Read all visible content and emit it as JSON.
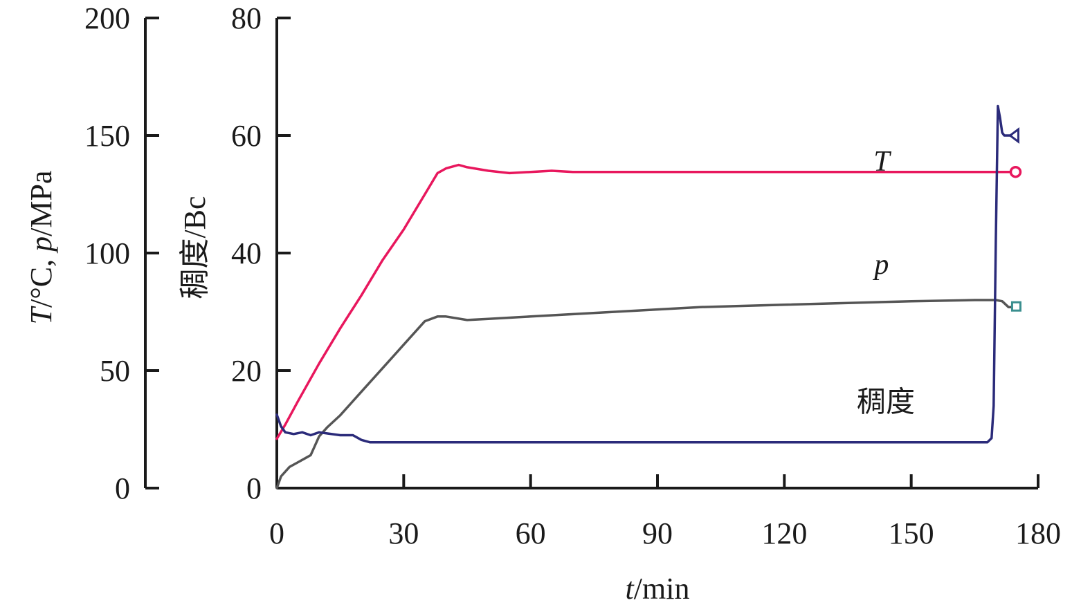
{
  "chart_data": {
    "type": "line",
    "x_label_var": "t",
    "x_label_unit": "/min",
    "y_left_label": {
      "var1": "T",
      "unit1": "/°C, ",
      "var2": "p",
      "unit2": "/MPa"
    },
    "y_mid_label": "稠度/Bc",
    "x_ticks": [
      0,
      30,
      60,
      90,
      120,
      150,
      180
    ],
    "xlim": [
      0,
      180
    ],
    "y_left_ticks": [
      0,
      50,
      100,
      150,
      200
    ],
    "y_left_lim": [
      0,
      200
    ],
    "y_right_ticks": [
      0,
      20,
      40,
      60,
      80
    ],
    "y_right_lim": [
      0,
      80
    ],
    "series": [
      {
        "name": "T",
        "axis": "left",
        "color": "#e8175d",
        "marker": "circle",
        "x": [
          0,
          2,
          5,
          10,
          15,
          20,
          25,
          30,
          35,
          38,
          40,
          42,
          43,
          45,
          50,
          55,
          60,
          65,
          70,
          100,
          135,
          150,
          170,
          175
        ],
        "y": [
          21,
          27,
          37,
          53,
          68,
          82,
          97,
          110,
          125,
          134,
          136,
          137,
          137.5,
          136.5,
          135,
          134,
          134.5,
          135,
          134.5,
          134.5,
          134.5,
          134.5,
          134.5,
          134.5
        ]
      },
      {
        "name": "p",
        "axis": "left",
        "color": "#555555",
        "marker": "square",
        "x": [
          0,
          1,
          3,
          5,
          7,
          8,
          9,
          10,
          12,
          15,
          20,
          25,
          30,
          35,
          38,
          40,
          45,
          50,
          60,
          80,
          100,
          120,
          150,
          165,
          170,
          171.5,
          173,
          175
        ],
        "y": [
          0,
          5,
          9,
          11,
          13,
          14,
          18,
          22,
          26,
          31,
          41,
          51,
          61,
          71,
          73,
          73,
          71.5,
          72,
          73,
          75,
          77,
          78,
          79.5,
          80,
          80,
          79.5,
          77,
          77
        ]
      },
      {
        "name": "稠度",
        "axis": "right",
        "color": "#2b2b7a",
        "marker": "triangle",
        "x": [
          0,
          1,
          2,
          4,
          6,
          8,
          10,
          12,
          15,
          18,
          20,
          22,
          30,
          40,
          60,
          100,
          150,
          168,
          169,
          169.5,
          170,
          170.5,
          171,
          171.5,
          172,
          173,
          175
        ],
        "y": [
          12.5,
          10.5,
          9.5,
          9.2,
          9.5,
          9.0,
          9.5,
          9.3,
          9.0,
          9.0,
          8.2,
          7.8,
          7.8,
          7.8,
          7.8,
          7.8,
          7.8,
          7.8,
          8.5,
          14,
          42,
          65,
          63,
          60.5,
          60,
          60,
          60
        ]
      }
    ],
    "annotations": [
      {
        "text": "T",
        "italic": true,
        "x": 143,
        "y_right": 54
      },
      {
        "text": "p",
        "italic": true,
        "x": 143,
        "y_right": 36.5
      },
      {
        "text": "稠度",
        "italic": false,
        "x": 144,
        "y_right": 13
      }
    ],
    "grid": false,
    "legend": "none"
  }
}
